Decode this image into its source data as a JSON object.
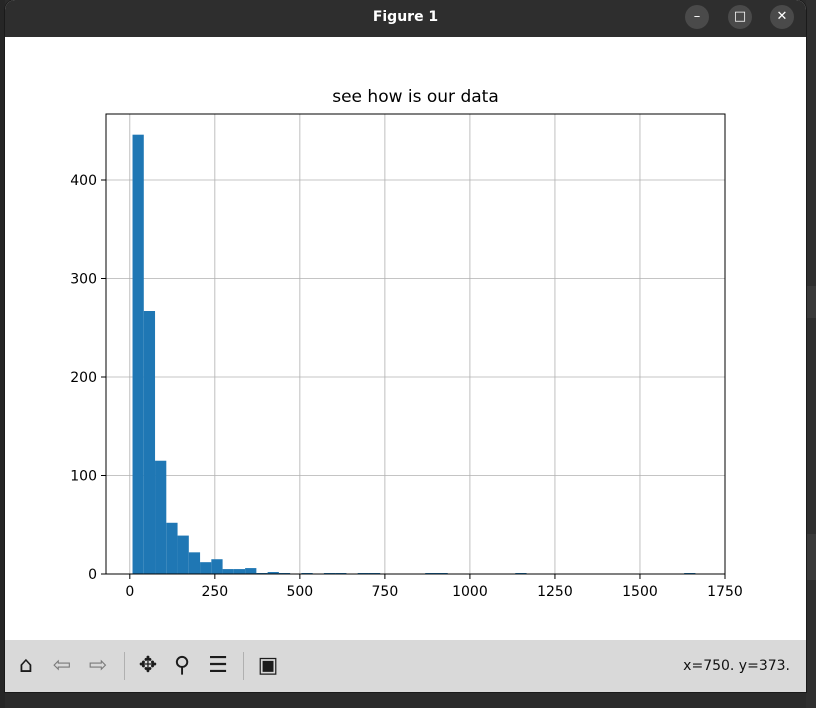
{
  "window": {
    "title": "Figure 1",
    "minimize_glyph": "–",
    "maximize_glyph": "□",
    "close_glyph": "✕"
  },
  "toolbar": {
    "home_glyph": "⌂",
    "back_glyph": "⇦",
    "forward_glyph": "⇨",
    "pan_glyph": "✥",
    "zoom_glyph": "⚲",
    "configure_glyph": "☰",
    "save_glyph": "▣",
    "icons": [
      "home-icon",
      "back-arrow-icon",
      "forward-arrow-icon",
      "pan-icon",
      "zoom-icon",
      "configure-subplots-icon",
      "save-icon"
    ],
    "coords": "x=750. y=373."
  },
  "colors": {
    "bar": "#1f77b4",
    "grid": "#b0b0b0",
    "titlebar": "#2e2e2e",
    "toolbar": "#d9d9d9"
  },
  "chart_data": {
    "type": "bar",
    "title": "see how is our data",
    "xlabel": "",
    "ylabel": "",
    "xlim": [
      -70,
      1750
    ],
    "ylim": [
      0,
      467
    ],
    "grid": true,
    "xticks": [
      0,
      250,
      500,
      750,
      1000,
      1250,
      1500,
      1750
    ],
    "xtick_labels": [
      "0",
      "250",
      "500",
      "750",
      "1000",
      "1250",
      "1500",
      "1750"
    ],
    "yticks": [
      0,
      100,
      200,
      300,
      400
    ],
    "ytick_labels": [
      "0",
      "100",
      "200",
      "300",
      "400"
    ],
    "bin_start": 8,
    "bin_width": 33.1,
    "counts": [
      446,
      267,
      115,
      52,
      39,
      22,
      12,
      15,
      5,
      5,
      6,
      1,
      2,
      1,
      0,
      1,
      0,
      1,
      1,
      0,
      1,
      1,
      0,
      0,
      0,
      0,
      1,
      1,
      0,
      0,
      0,
      0,
      0,
      0,
      1,
      0,
      0,
      0,
      0,
      0,
      0,
      0,
      0,
      0,
      0,
      0,
      0,
      0,
      0,
      1
    ]
  }
}
